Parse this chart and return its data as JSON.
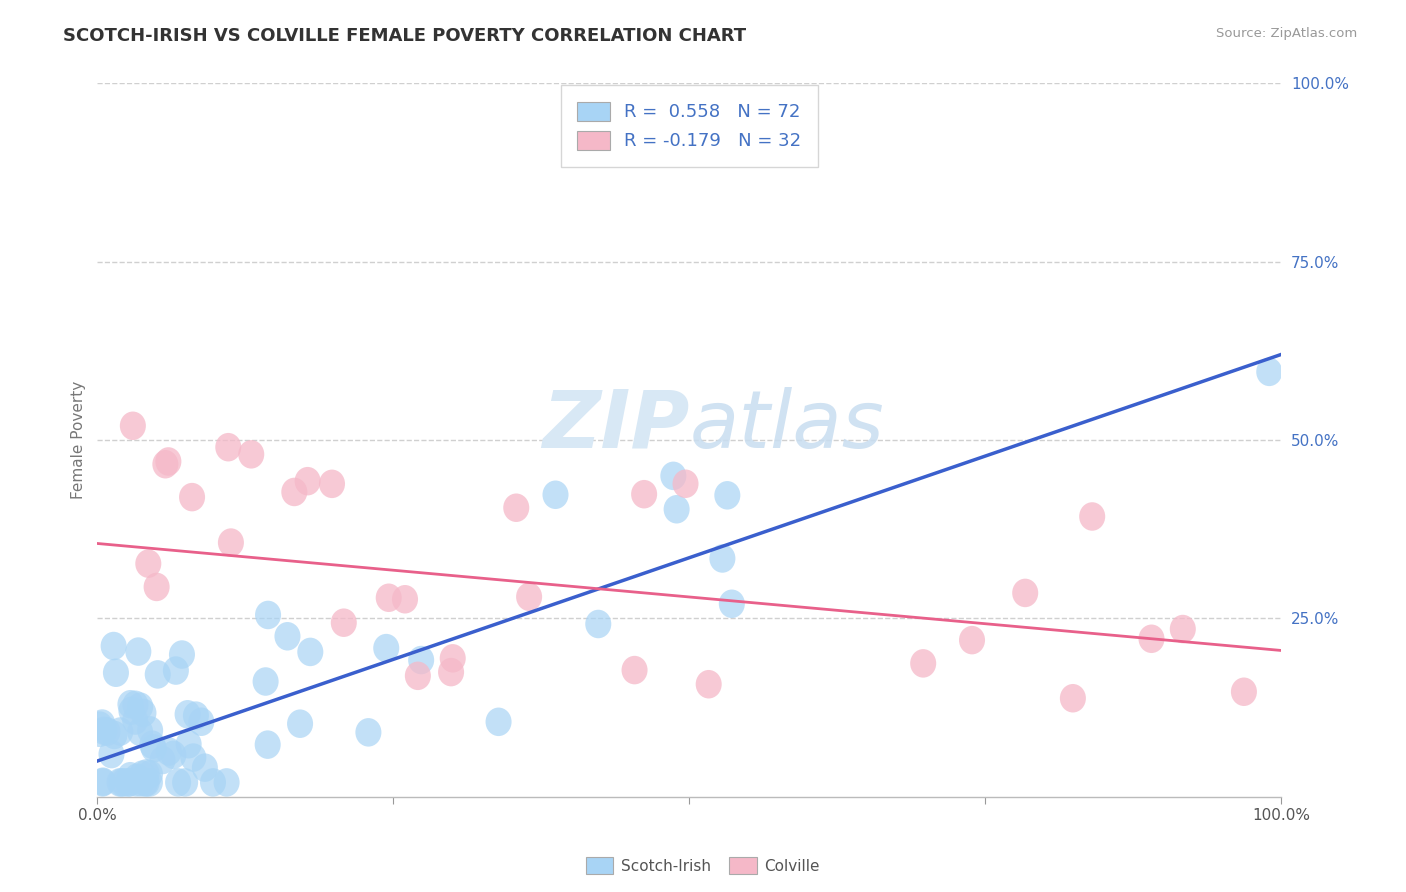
{
  "title": "SCOTCH-IRISH VS COLVILLE FEMALE POVERTY CORRELATION CHART",
  "source": "Source: ZipAtlas.com",
  "ylabel": "Female Poverty",
  "xlim": [
    0.0,
    1.0
  ],
  "ylim": [
    0.0,
    1.0
  ],
  "xticks": [
    0.0,
    0.25,
    0.5,
    0.75,
    1.0
  ],
  "xticklabels": [
    "0.0%",
    "",
    "",
    "",
    "100.0%"
  ],
  "ytick_positions": [
    0.25,
    0.5,
    0.75,
    1.0
  ],
  "yticklabels": [
    "25.0%",
    "50.0%",
    "75.0%",
    "100.0%"
  ],
  "scotch_irish_color": "#a8d4f5",
  "colville_color": "#f5b8c8",
  "scotch_irish_line_color": "#3a5fcd",
  "colville_line_color": "#e8608a",
  "scotch_irish_R": 0.558,
  "scotch_irish_N": 72,
  "colville_R": -0.179,
  "colville_N": 32,
  "watermark_zip": "ZIP",
  "watermark_atlas": "atlas",
  "background_color": "#ffffff",
  "grid_color": "#d0d0d0",
  "legend_text_color": "#4472c4",
  "si_line_x": [
    0.0,
    1.0
  ],
  "si_line_y": [
    0.05,
    0.62
  ],
  "col_line_x": [
    0.0,
    1.0
  ],
  "col_line_y": [
    0.355,
    0.205
  ]
}
